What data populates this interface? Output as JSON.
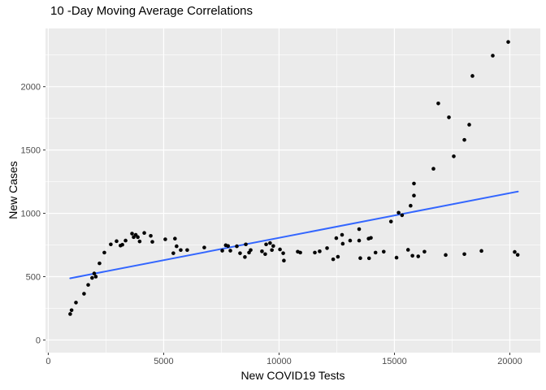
{
  "chart_data": {
    "type": "scatter",
    "title": "10 -Day Moving Average Correlations",
    "xlabel": "New COVID19 Tests",
    "ylabel": "New Cases",
    "xlim": [
      -120,
      21320
    ],
    "ylim": [
      -100,
      2460
    ],
    "x_major_ticks": [
      0,
      5000,
      10000,
      15000,
      20000
    ],
    "x_minor_ticks": [
      2500,
      7500,
      12500,
      17500
    ],
    "y_major_ticks": [
      0,
      500,
      1000,
      1500,
      2000
    ],
    "y_minor_ticks": [
      250,
      750,
      1250,
      1750,
      2250
    ],
    "grid": "on",
    "legend_position": "none",
    "colors": {
      "panel_bg": "#EBEBEB",
      "grid": "#FFFFFF",
      "points": "#000000",
      "trend_line": "#3366FF",
      "tick_labels": "#4D4D4D",
      "tick_marks": "#333333",
      "title": "#000000"
    },
    "trend_line": {
      "model": "linear",
      "x": [
        950,
        20350
      ],
      "y": [
        487,
        1172
      ]
    },
    "points": [
      [
        950,
        205
      ],
      [
        1010,
        235
      ],
      [
        1200,
        295
      ],
      [
        1550,
        365
      ],
      [
        1730,
        435
      ],
      [
        1900,
        490
      ],
      [
        1990,
        525
      ],
      [
        2060,
        500
      ],
      [
        2220,
        605
      ],
      [
        2430,
        690
      ],
      [
        2710,
        755
      ],
      [
        2960,
        780
      ],
      [
        3130,
        745
      ],
      [
        3210,
        752
      ],
      [
        3350,
        785
      ],
      [
        3630,
        840
      ],
      [
        3700,
        812
      ],
      [
        3790,
        830
      ],
      [
        3880,
        812
      ],
      [
        3960,
        778
      ],
      [
        4160,
        845
      ],
      [
        4440,
        822
      ],
      [
        4510,
        775
      ],
      [
        5070,
        795
      ],
      [
        5420,
        685
      ],
      [
        5490,
        800
      ],
      [
        5560,
        740
      ],
      [
        5740,
        710
      ],
      [
        6020,
        710
      ],
      [
        6760,
        730
      ],
      [
        7540,
        705
      ],
      [
        7690,
        748
      ],
      [
        7790,
        742
      ],
      [
        7890,
        705
      ],
      [
        8170,
        740
      ],
      [
        8310,
        685
      ],
      [
        8520,
        655
      ],
      [
        8560,
        755
      ],
      [
        8700,
        690
      ],
      [
        8770,
        710
      ],
      [
        9260,
        700
      ],
      [
        9400,
        678
      ],
      [
        9440,
        755
      ],
      [
        9610,
        765
      ],
      [
        9690,
        710
      ],
      [
        9750,
        742
      ],
      [
        10040,
        715
      ],
      [
        10180,
        685
      ],
      [
        10210,
        627
      ],
      [
        10810,
        697
      ],
      [
        10920,
        690
      ],
      [
        11550,
        690
      ],
      [
        11760,
        700
      ],
      [
        12080,
        725
      ],
      [
        12345,
        637
      ],
      [
        12480,
        804
      ],
      [
        12550,
        657
      ],
      [
        12730,
        830
      ],
      [
        12760,
        760
      ],
      [
        13080,
        785
      ],
      [
        13470,
        875
      ],
      [
        13470,
        785
      ],
      [
        13520,
        646
      ],
      [
        13880,
        800
      ],
      [
        13900,
        645
      ],
      [
        13980,
        806
      ],
      [
        14180,
        690
      ],
      [
        14535,
        697
      ],
      [
        14850,
        935
      ],
      [
        15090,
        650
      ],
      [
        15180,
        1005
      ],
      [
        15330,
        985
      ],
      [
        15590,
        712
      ],
      [
        15700,
        1060
      ],
      [
        15780,
        665
      ],
      [
        15845,
        1140
      ],
      [
        15845,
        1235
      ],
      [
        16030,
        660
      ],
      [
        16300,
        697
      ],
      [
        16690,
        1352
      ],
      [
        16900,
        1868
      ],
      [
        17220,
        671
      ],
      [
        17360,
        1758
      ],
      [
        17570,
        1450
      ],
      [
        18030,
        1580
      ],
      [
        18030,
        678
      ],
      [
        18240,
        1700
      ],
      [
        18380,
        2085
      ],
      [
        18770,
        703
      ],
      [
        19260,
        2245
      ],
      [
        19930,
        2353
      ],
      [
        20210,
        695
      ],
      [
        20340,
        672
      ]
    ]
  }
}
